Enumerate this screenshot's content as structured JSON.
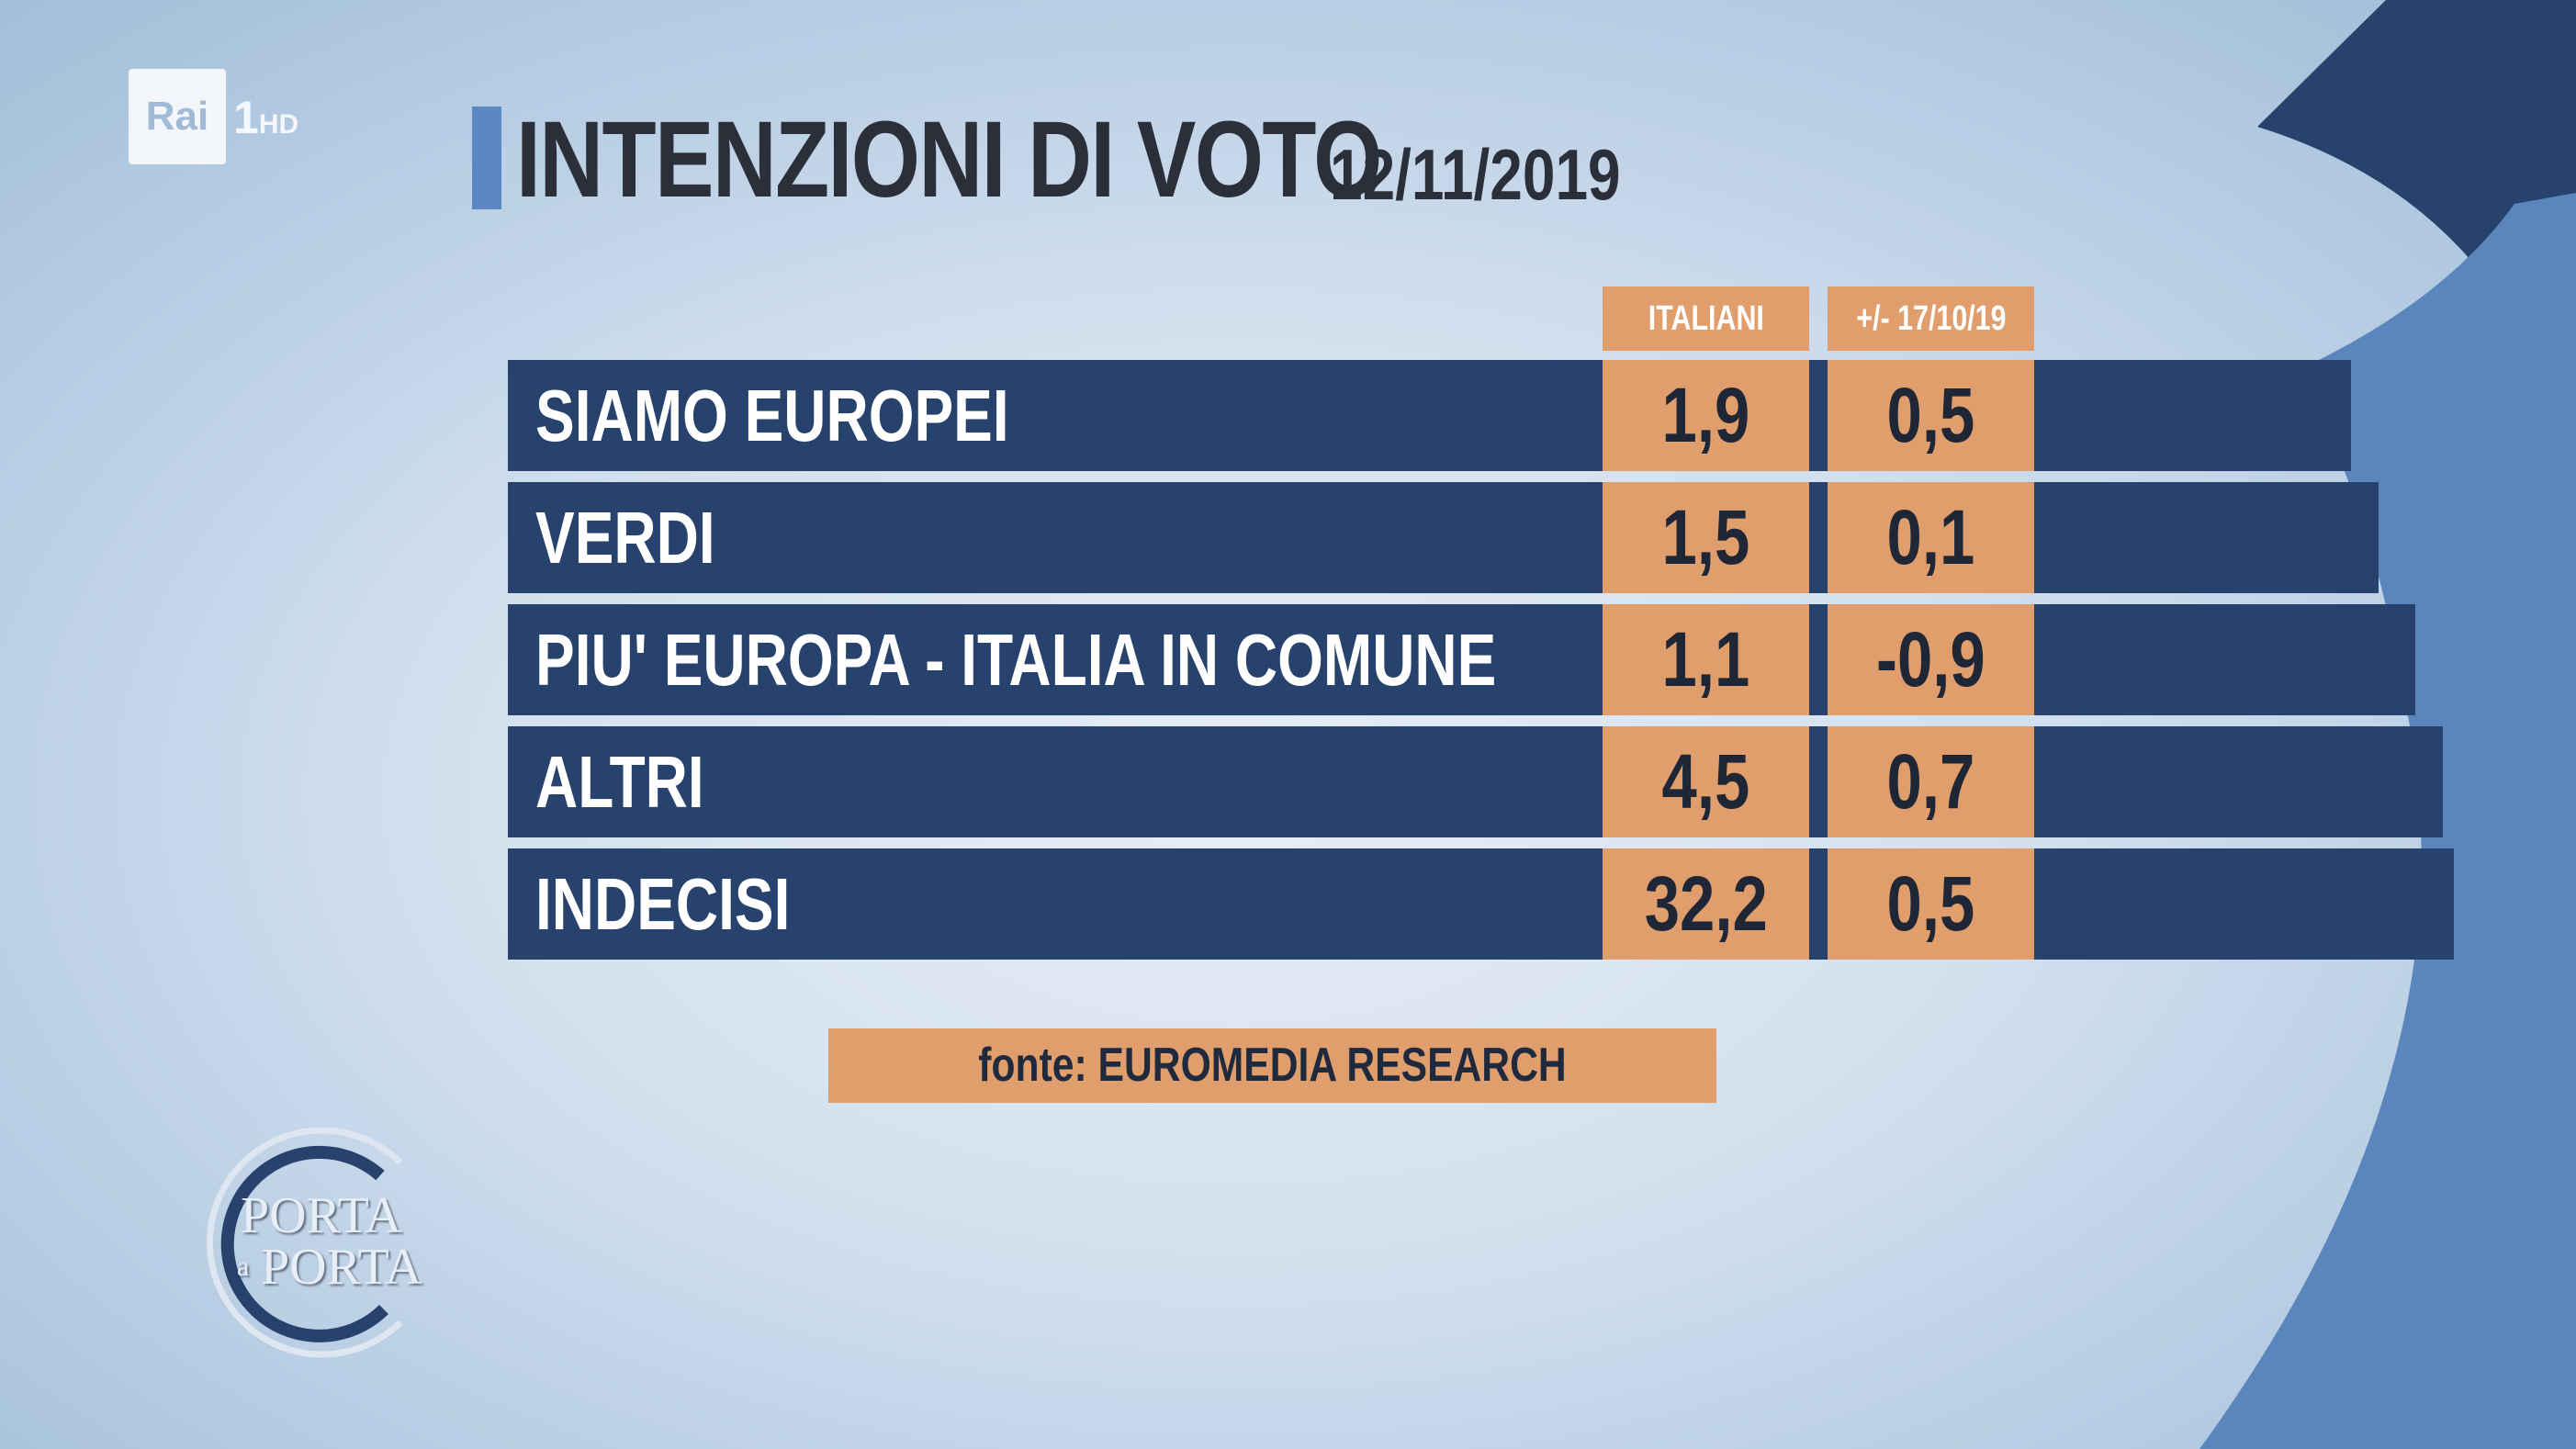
{
  "broadcaster": {
    "brand": "Rai",
    "channel": "1",
    "quality": "HD"
  },
  "title": "INTENZIONI DI VOTO",
  "date": "12/11/2019",
  "show_logo": {
    "line1": "PORTA",
    "connector": "a",
    "line2": "PORTA"
  },
  "source": "fonte: EUROMEDIA RESEARCH",
  "colors": {
    "row_bg": "#27426d",
    "cell_bg": "#df9e6c",
    "title_accent": "#5b87c2"
  },
  "chart_data": {
    "type": "table",
    "columns": [
      "ITALIANI",
      "+/- 17/10/19"
    ],
    "rows": [
      {
        "label": "SIAMO EUROPEI",
        "italiani": "1,9",
        "diff": "0,5"
      },
      {
        "label": "VERDI",
        "italiani": "1,5",
        "diff": "0,1"
      },
      {
        "label": "PIU' EUROPA - ITALIA IN COMUNE",
        "italiani": "1,1",
        "diff": "-0,9"
      },
      {
        "label": "ALTRI",
        "italiani": "4,5",
        "diff": "0,7"
      },
      {
        "label": "INDECISI",
        "italiani": "32,2",
        "diff": "0,5"
      }
    ]
  }
}
